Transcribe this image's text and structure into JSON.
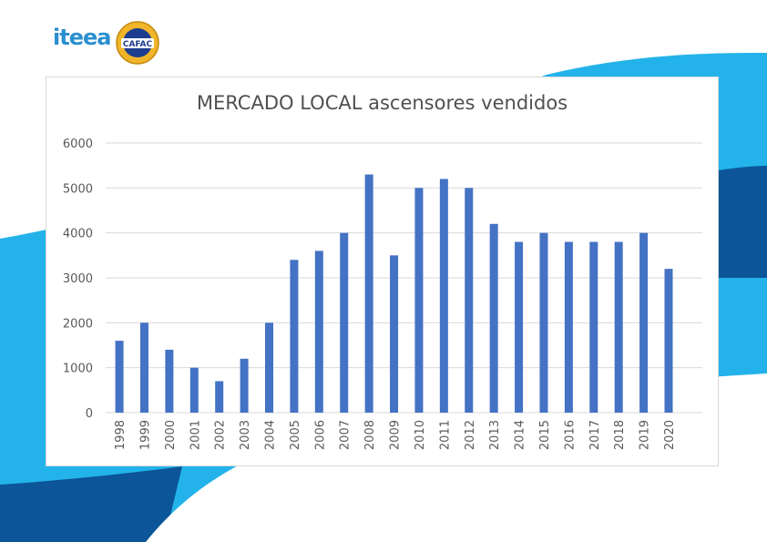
{
  "branding": {
    "logo_left": {
      "icon": "iteea-logo",
      "text": "iteea",
      "color": "#2a8fd0"
    },
    "logo_right": {
      "icon": "cafac-seal",
      "text": "CAFAC",
      "color": "#1d3d8f",
      "ring_color": "#f1b52a"
    }
  },
  "theme": {
    "wave_light": "#23b3ea",
    "wave_dark": "#0b5598",
    "bar_color": "#4472c4",
    "grid_color": "#d9d9d9",
    "text_color": "#595959"
  },
  "chart_data": {
    "type": "bar",
    "title": "MERCADO LOCAL ascensores vendidos",
    "xlabel": "",
    "ylabel": "",
    "categories": [
      "1998",
      "1999",
      "2000",
      "2001",
      "2002",
      "2003",
      "2004",
      "2005",
      "2006",
      "2007",
      "2008",
      "2009",
      "2010",
      "2011",
      "2012",
      "2013",
      "2014",
      "2015",
      "2016",
      "2017",
      "2018",
      "2019",
      "2020"
    ],
    "values": [
      1600,
      2000,
      1400,
      1000,
      700,
      1200,
      2000,
      3400,
      3600,
      4000,
      5300,
      3500,
      5000,
      5200,
      5000,
      4200,
      3800,
      4000,
      3800,
      3800,
      3800,
      4000,
      3200
    ],
    "ylim": [
      0,
      6000
    ],
    "yticks": [
      "0",
      "1000",
      "2000",
      "3000",
      "4000",
      "5000",
      "6000"
    ],
    "grid": true,
    "legend": "none",
    "xtick_rotation": "vertical"
  }
}
